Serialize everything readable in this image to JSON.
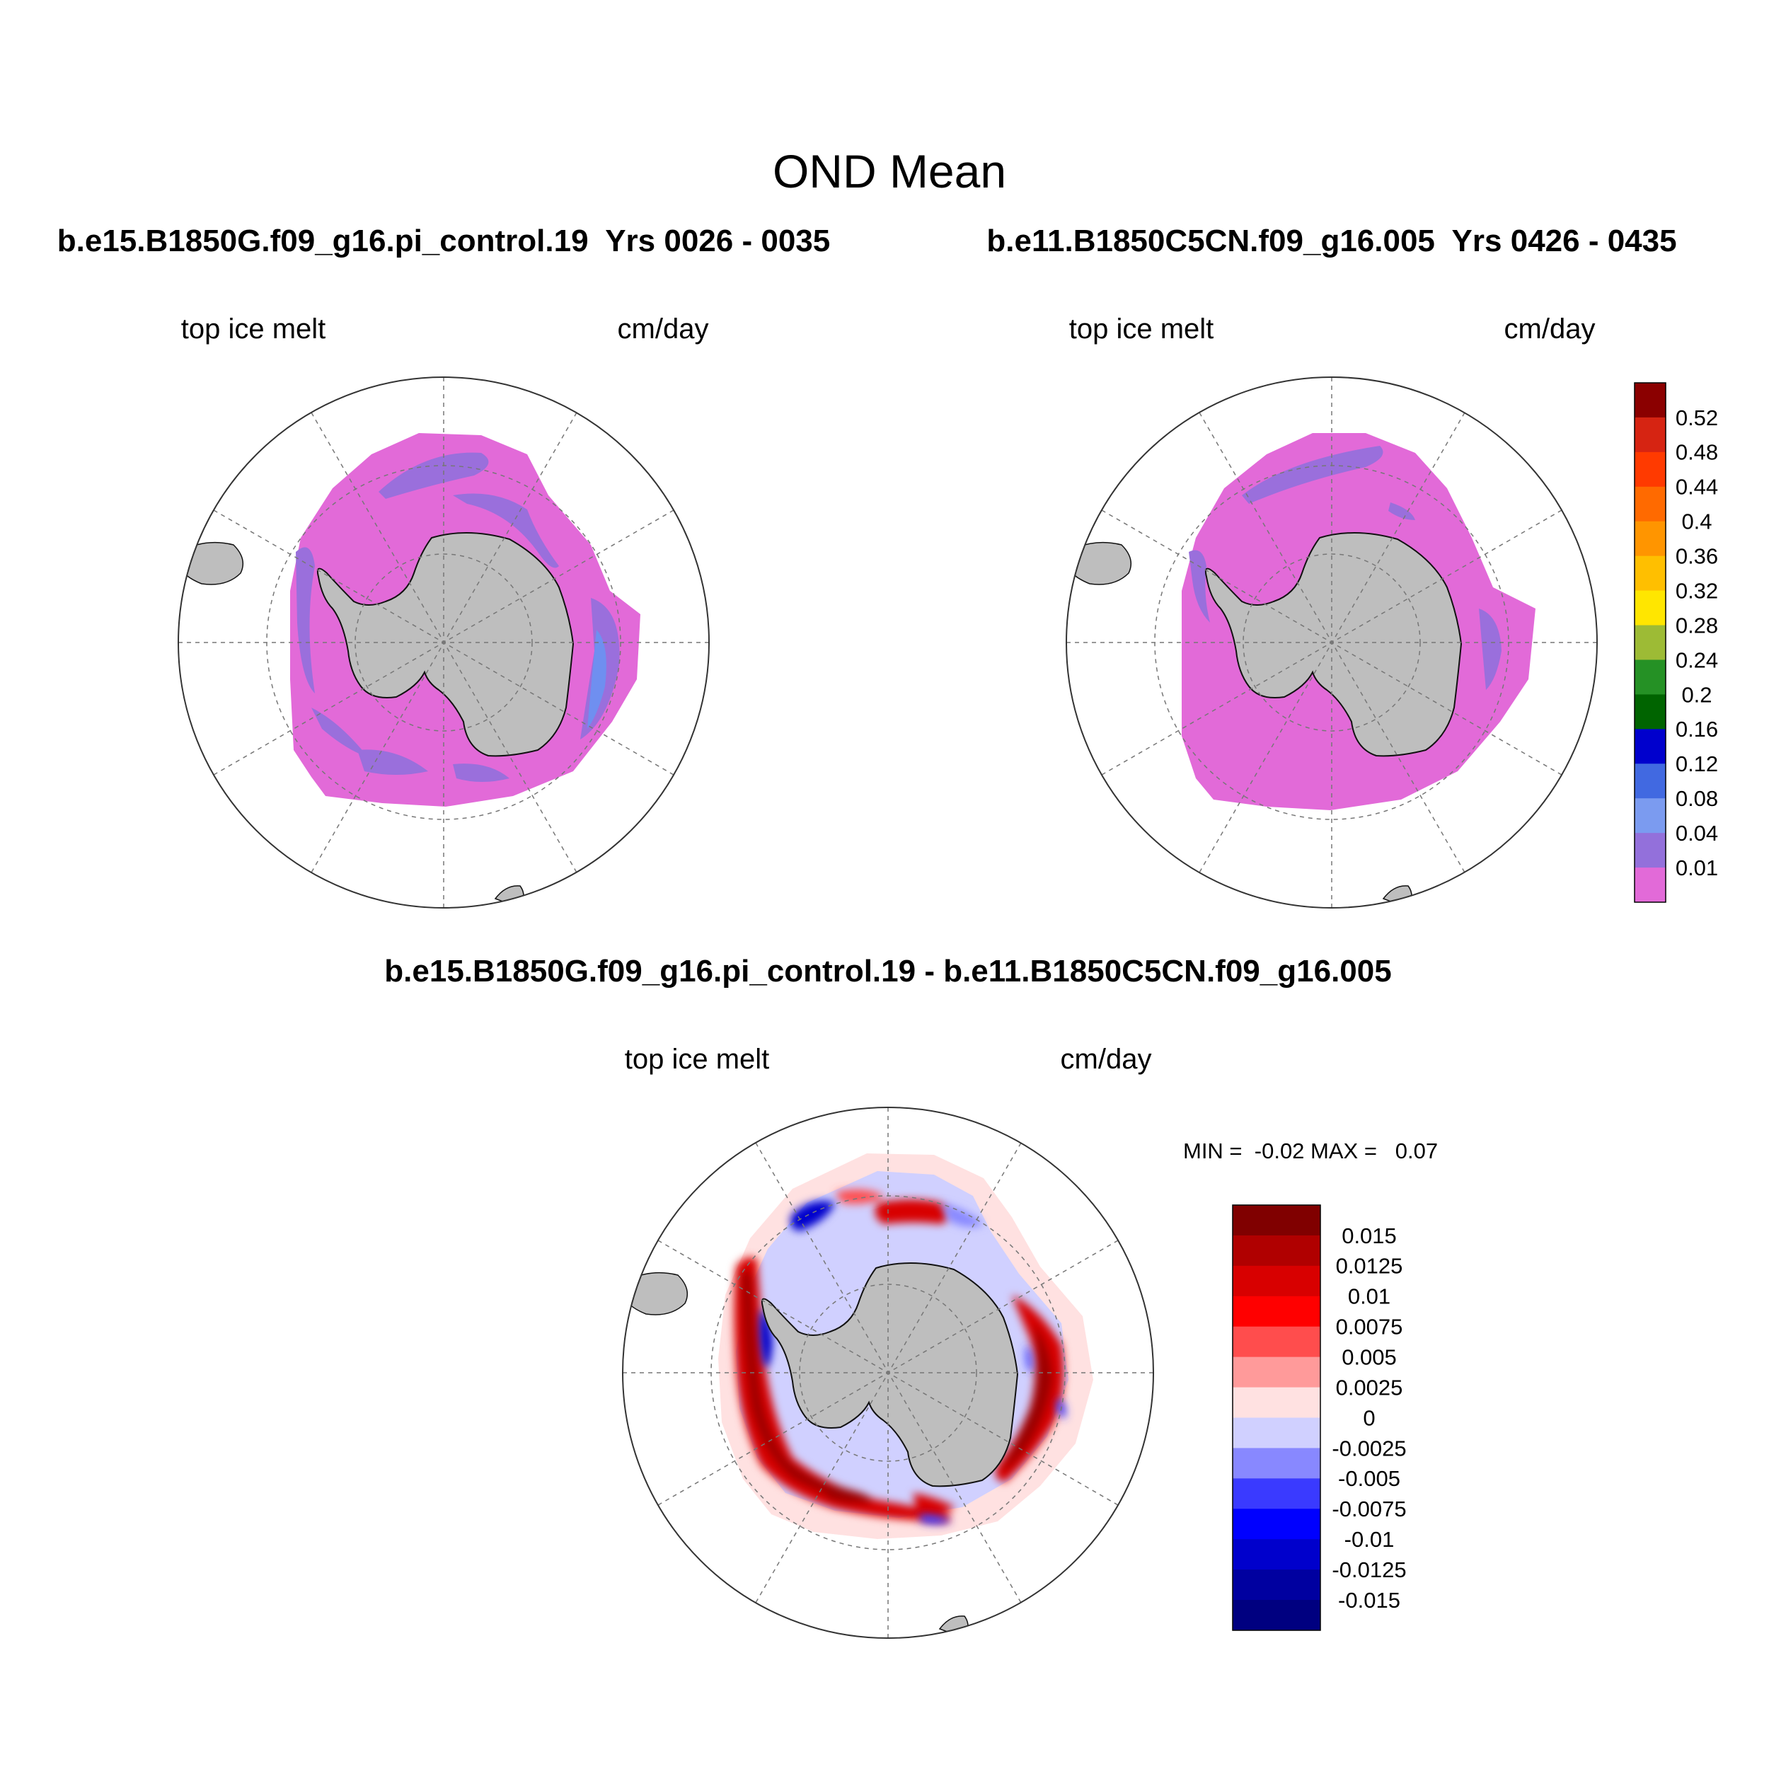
{
  "title": "OND Mean",
  "panels": {
    "left": {
      "case_title": "b.e15.B1850G.f09_g16.pi_control.19  Yrs 0026 - 0035",
      "variable": "top ice melt",
      "units": "cm/day"
    },
    "right": {
      "case_title": "b.e11.B1850C5CN.f09_g16.005  Yrs 0426 - 0435",
      "variable": "top ice melt",
      "units": "cm/day"
    },
    "diff": {
      "case_title": "b.e15.B1850G.f09_g16.pi_control.19 - b.e11.B1850C5CN.f09_g16.005",
      "variable": "top ice melt",
      "units": "cm/day",
      "minmax": "MIN =  -0.02 MAX =   0.07"
    }
  },
  "colors": {
    "land": "#bebebe",
    "ice_base": "#e26ad8",
    "grid": "#777777"
  },
  "chart_data": [
    {
      "type": "heatmap",
      "projection": "south polar stereographic",
      "title": "b.e15.B1850G.f09_g16.pi_control.19  Yrs 0026 - 0035",
      "variable": "top ice melt",
      "units": "cm/day",
      "levels": [
        0.01,
        0.04,
        0.08,
        0.12,
        0.16,
        0.2,
        0.24,
        0.28,
        0.32,
        0.36,
        0.4,
        0.44,
        0.48,
        0.52
      ],
      "dominant_value_range": [
        0.0,
        0.08
      ]
    },
    {
      "type": "heatmap",
      "projection": "south polar stereographic",
      "title": "b.e11.B1850C5CN.f09_g16.005  Yrs 0426 - 0435",
      "variable": "top ice melt",
      "units": "cm/day",
      "levels": [
        0.01,
        0.04,
        0.08,
        0.12,
        0.16,
        0.2,
        0.24,
        0.28,
        0.32,
        0.36,
        0.4,
        0.44,
        0.48,
        0.52
      ],
      "dominant_value_range": [
        0.0,
        0.04
      ]
    },
    {
      "type": "heatmap",
      "projection": "south polar stereographic",
      "title": "b.e15.B1850G.f09_g16.pi_control.19 - b.e11.B1850C5CN.f09_g16.005",
      "variable": "top ice melt",
      "units": "cm/day",
      "min": -0.02,
      "max": 0.07,
      "levels": [
        -0.015,
        -0.0125,
        -0.01,
        -0.0075,
        -0.005,
        -0.0025,
        0,
        0.0025,
        0.005,
        0.0075,
        0.01,
        0.0125,
        0.015
      ]
    }
  ],
  "colorbars": {
    "top": {
      "labels": [
        "0.52",
        "0.48",
        "0.44",
        "0.4",
        "0.36",
        "0.32",
        "0.28",
        "0.24",
        "0.2",
        "0.16",
        "0.12",
        "0.08",
        "0.04",
        "0.01"
      ],
      "colors": [
        "#8b0000",
        "#d62412",
        "#ff3a00",
        "#ff6a00",
        "#ff9500",
        "#ffbf00",
        "#ffe600",
        "#9dbb35",
        "#259125",
        "#006400",
        "#0000cd",
        "#4169e1",
        "#7b9bf0",
        "#9370db",
        "#e26ad8"
      ]
    },
    "diff": {
      "labels": [
        "0.015",
        "0.0125",
        "0.01",
        "0.0075",
        "0.005",
        "0.0025",
        "0",
        "-0.0025",
        "-0.005",
        "-0.0075",
        "-0.01",
        "-0.0125",
        "-0.015"
      ],
      "colors": [
        "#800000",
        "#b00000",
        "#d80000",
        "#ff0000",
        "#ff4d4d",
        "#ff9a9a",
        "#ffe1e1",
        "#d0d0ff",
        "#8888ff",
        "#3a3aff",
        "#0000ff",
        "#0000cc",
        "#0000a0",
        "#000080"
      ]
    }
  }
}
